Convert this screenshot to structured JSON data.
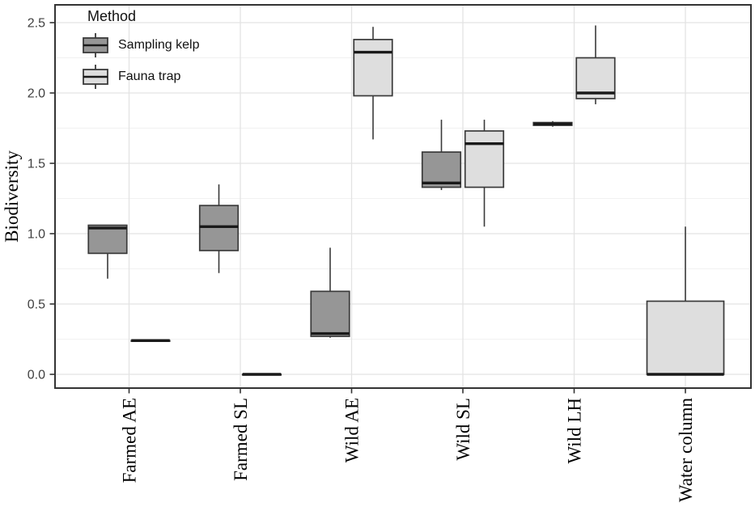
{
  "chart_data": {
    "type": "boxplot",
    "title": "",
    "ylabel": "Biodiversity",
    "xlabel": "",
    "legend_title": "Method",
    "legend_position": "top-left-inside",
    "grid": "major and minor horizontal, vertical at categories",
    "y_ticks": [
      0.0,
      0.5,
      1.0,
      1.5,
      2.0,
      2.5
    ],
    "ylim": [
      -0.1,
      2.62
    ],
    "categories": [
      "Farmed AE",
      "Farmed SL",
      "Wild AE",
      "Wild SL",
      "Wild LH",
      "Water column"
    ],
    "series": [
      {
        "name": "Sampling kelp",
        "fill": "#969696",
        "boxes": [
          {
            "min": 0.68,
            "q1": 0.86,
            "median": 1.04,
            "q3": 1.06,
            "max": 1.06
          },
          {
            "min": 0.72,
            "q1": 0.88,
            "median": 1.05,
            "q3": 1.2,
            "max": 1.35
          },
          {
            "min": 0.26,
            "q1": 0.27,
            "median": 0.29,
            "q3": 0.59,
            "max": 0.9
          },
          {
            "min": 1.31,
            "q1": 1.33,
            "median": 1.36,
            "q3": 1.58,
            "max": 1.81
          },
          {
            "min": 1.76,
            "q1": 1.77,
            "median": 1.78,
            "q3": 1.79,
            "max": 1.8
          },
          null
        ]
      },
      {
        "name": "Fauna trap",
        "fill": "#dedede",
        "boxes": [
          {
            "min": 0.24,
            "q1": 0.24,
            "median": 0.24,
            "q3": 0.24,
            "max": 0.24
          },
          {
            "min": 0.0,
            "q1": 0.0,
            "median": 0.0,
            "q3": 0.0,
            "max": 0.0
          },
          {
            "min": 1.67,
            "q1": 1.98,
            "median": 2.29,
            "q3": 2.38,
            "max": 2.47
          },
          {
            "min": 1.05,
            "q1": 1.33,
            "median": 1.64,
            "q3": 1.73,
            "max": 1.81
          },
          {
            "min": 1.92,
            "q1": 1.96,
            "median": 2.0,
            "q3": 2.25,
            "max": 2.48
          },
          {
            "min": 0.0,
            "q1": 0.0,
            "median": 0.0,
            "q3": 0.52,
            "max": 1.05
          }
        ]
      }
    ],
    "colors": {
      "box_border": "#3a3a3a",
      "median": "#1a1a1a",
      "whisker": "#3a3a3a",
      "grid_major": "#e3e3e3",
      "grid_minor": "#f1f1f1",
      "panel_border": "#343434",
      "axis_tick": "#333333",
      "y_tick_text": "#404040",
      "x_tick_text": "#000000"
    }
  }
}
